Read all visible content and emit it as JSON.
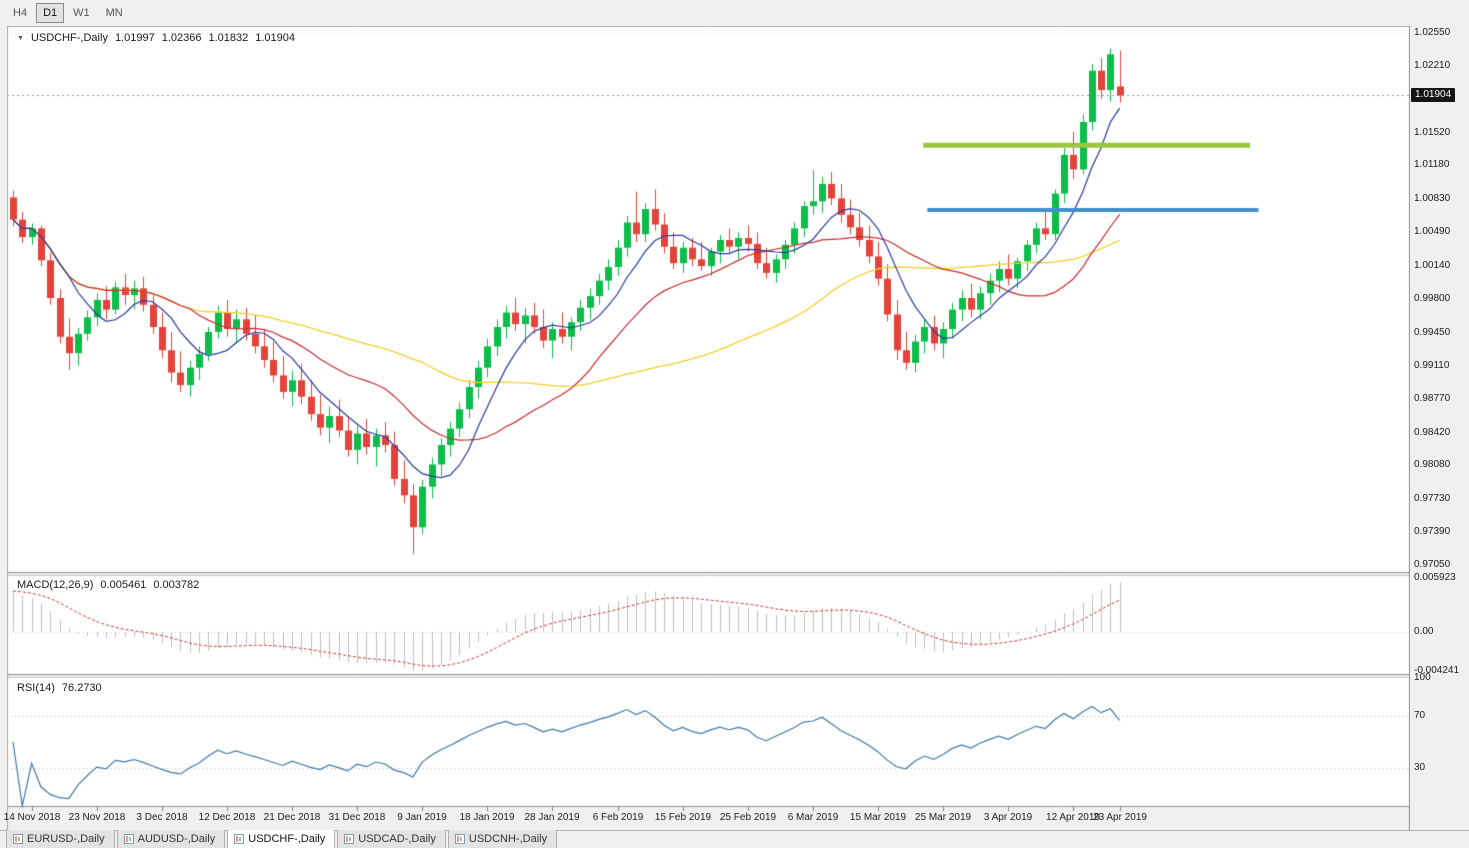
{
  "toolbar": {
    "timeframes": [
      "H4",
      "D1",
      "W1",
      "MN"
    ],
    "active": "D1"
  },
  "main_chart": {
    "title_symbol": "USDCHF-,Daily",
    "ohlc": {
      "open": "1.01997",
      "high": "1.02366",
      "low": "1.01832",
      "close": "1.01904"
    },
    "current_price": "1.01904",
    "current_price_value": 1.01904,
    "grid_top_price": 1.0255,
    "price_axis_labels": [
      "1.02550",
      "1.02210",
      "1.01520",
      "1.01180",
      "1.00830",
      "1.00490",
      "1.00140",
      "0.99800",
      "0.99450",
      "0.99110",
      "0.98770",
      "0.98420",
      "0.98080",
      "0.97730",
      "0.97390",
      "0.97050"
    ],
    "annotations": {
      "resistance_line": {
        "price": 1.0139,
        "x1": 0.653,
        "x2": 0.886,
        "color": "#9bc53d",
        "thickness": 5
      },
      "support_line": {
        "price": 1.0072,
        "x1": 0.656,
        "x2": 0.892,
        "color": "#3f8fce",
        "thickness": 4
      }
    }
  },
  "macd_panel": {
    "label": "MACD(12,26,9)",
    "value_main": "0.005461",
    "value_signal": "0.003782",
    "axis_labels": [
      "0.005923",
      "0.00",
      "-0.004241"
    ]
  },
  "rsi_panel": {
    "label": "RSI(14)",
    "value": "76.2730",
    "axis_labels": [
      "100",
      "70",
      "30"
    ],
    "levels": [
      70,
      30
    ]
  },
  "date_axis": {
    "labels": [
      "14 Nov 2018",
      "23 Nov 2018",
      "3 Dec 2018",
      "12 Dec 2018",
      "21 Dec 2018",
      "31 Dec 2018",
      "9 Jan 2019",
      "18 Jan 2019",
      "28 Jan 2019",
      "6 Feb 2019",
      "15 Feb 2019",
      "25 Feb 2019",
      "6 Mar 2019",
      "15 Mar 2019",
      "25 Mar 2019",
      "3 Apr 2019",
      "12 Apr 2019",
      "23 Apr 2019"
    ]
  },
  "tabs": {
    "items": [
      "EURUSD-,Daily",
      "AUDUSD-,Daily",
      "USDCHF-,Daily",
      "USDCAD-,Daily",
      "USDCNH-,Daily"
    ],
    "active_index": 2
  },
  "colors": {
    "bull": "#0cbd49",
    "bear": "#e4433b",
    "ma_fast": "#2b3a9e",
    "ma_mid": "#c52f2f",
    "ma_slow": "#f2cf2a",
    "macd_hist": "#c0c0c0",
    "macd_signal": "#d23a3a",
    "rsi_line": "#4079a8",
    "badge_bg": "#151515",
    "resistance": "#9bc53d",
    "support": "#3f8fce"
  },
  "chart_data": {
    "type": "candlestick",
    "title": "USDCHF-,Daily",
    "symbol": "USDCHF",
    "timeframe": "Daily",
    "price_range": [
      0.9705,
      1.0255
    ],
    "x_labels": [
      "14 Nov 2018",
      "23 Nov 2018",
      "3 Dec 2018",
      "12 Dec 2018",
      "21 Dec 2018",
      "31 Dec 2018",
      "9 Jan 2019",
      "18 Jan 2019",
      "28 Jan 2019",
      "6 Feb 2019",
      "15 Feb 2019",
      "25 Feb 2019",
      "6 Mar 2019",
      "15 Mar 2019",
      "25 Mar 2019",
      "3 Apr 2019",
      "12 Apr 2019",
      "23 Apr 2019"
    ],
    "overlays": [
      {
        "name": "ma-fast-blue",
        "type": "sma",
        "period": 7
      },
      {
        "name": "ma-mid-red",
        "type": "sma",
        "period": 20
      },
      {
        "name": "ma-slow-yellow",
        "type": "sma",
        "period": 45
      }
    ],
    "macd": {
      "params": [
        12,
        26,
        9
      ],
      "current_main": 0.005461,
      "current_signal": 0.003782,
      "axis_range": [
        -0.004241,
        0.005923
      ]
    },
    "rsi": {
      "period": 14,
      "current": 76.273,
      "levels": [
        70,
        30
      ]
    },
    "candles": [
      [
        1.0085,
        1.0092,
        1.0055,
        1.0062
      ],
      [
        1.0062,
        1.007,
        1.0038,
        1.0044
      ],
      [
        1.0044,
        1.0058,
        1.0036,
        1.0053
      ],
      [
        1.0053,
        1.0056,
        1.0014,
        1.002
      ],
      [
        1.002,
        1.0028,
        0.9974,
        0.9981
      ],
      [
        0.9981,
        0.999,
        0.9934,
        0.9941
      ],
      [
        0.9941,
        0.996,
        0.9907,
        0.9924
      ],
      [
        0.9924,
        0.995,
        0.9911,
        0.9944
      ],
      [
        0.9944,
        0.9968,
        0.9937,
        0.9961
      ],
      [
        0.9961,
        0.9986,
        0.9952,
        0.9979
      ],
      [
        0.9979,
        0.9993,
        0.9959,
        0.9969
      ],
      [
        0.9969,
        0.9998,
        0.9964,
        0.9992
      ],
      [
        0.9992,
        1.0006,
        0.9974,
        0.9984
      ],
      [
        0.9984,
        0.9999,
        0.9969,
        0.9991
      ],
      [
        0.9991,
        1.0003,
        0.9967,
        0.9974
      ],
      [
        0.9974,
        0.9985,
        0.9944,
        0.9951
      ],
      [
        0.9951,
        0.9966,
        0.9919,
        0.9927
      ],
      [
        0.9927,
        0.9946,
        0.9894,
        0.9904
      ],
      [
        0.9904,
        0.9926,
        0.9884,
        0.9891
      ],
      [
        0.9891,
        0.9916,
        0.9879,
        0.9909
      ],
      [
        0.9909,
        0.9931,
        0.9896,
        0.9923
      ],
      [
        0.9923,
        0.9951,
        0.9916,
        0.9946
      ],
      [
        0.9946,
        0.9973,
        0.9939,
        0.9966
      ],
      [
        0.9966,
        0.9979,
        0.9941,
        0.9949
      ],
      [
        0.9949,
        0.9969,
        0.9934,
        0.9959
      ],
      [
        0.9959,
        0.9971,
        0.9937,
        0.9944
      ],
      [
        0.9944,
        0.9963,
        0.9924,
        0.9931
      ],
      [
        0.9931,
        0.9949,
        0.9909,
        0.9917
      ],
      [
        0.9917,
        0.9936,
        0.9894,
        0.9901
      ],
      [
        0.9901,
        0.9921,
        0.9877,
        0.9884
      ],
      [
        0.9884,
        0.9906,
        0.9869,
        0.9896
      ],
      [
        0.9896,
        0.9913,
        0.9871,
        0.9879
      ],
      [
        0.9879,
        0.9896,
        0.9854,
        0.9861
      ],
      [
        0.9861,
        0.9881,
        0.9839,
        0.9847
      ],
      [
        0.9847,
        0.9869,
        0.9831,
        0.9859
      ],
      [
        0.9859,
        0.9876,
        0.9837,
        0.9844
      ],
      [
        0.9844,
        0.9859,
        0.9817,
        0.9824
      ],
      [
        0.9824,
        0.9849,
        0.9809,
        0.9841
      ],
      [
        0.9841,
        0.9856,
        0.9819,
        0.9827
      ],
      [
        0.9827,
        0.9846,
        0.9807,
        0.9839
      ],
      [
        0.9839,
        0.9853,
        0.9821,
        0.9829
      ],
      [
        0.9829,
        0.9843,
        0.9787,
        0.9794
      ],
      [
        0.9794,
        0.9813,
        0.9769,
        0.9777
      ],
      [
        0.9777,
        0.9789,
        0.9716,
        0.9744
      ],
      [
        0.9744,
        0.9793,
        0.9737,
        0.9786
      ],
      [
        0.9786,
        0.9816,
        0.9774,
        0.9809
      ],
      [
        0.9809,
        0.9836,
        0.9797,
        0.9829
      ],
      [
        0.9829,
        0.9853,
        0.9817,
        0.9846
      ],
      [
        0.9846,
        0.9873,
        0.9837,
        0.9866
      ],
      [
        0.9866,
        0.9896,
        0.9857,
        0.9889
      ],
      [
        0.9889,
        0.9916,
        0.9877,
        0.9909
      ],
      [
        0.9909,
        0.9939,
        0.9899,
        0.9931
      ],
      [
        0.9931,
        0.9959,
        0.9921,
        0.9951
      ],
      [
        0.9951,
        0.9973,
        0.9939,
        0.9966
      ],
      [
        0.9966,
        0.9981,
        0.9947,
        0.9954
      ],
      [
        0.9954,
        0.9971,
        0.9934,
        0.9963
      ],
      [
        0.9963,
        0.9976,
        0.9944,
        0.9951
      ],
      [
        0.9951,
        0.9969,
        0.9929,
        0.9937
      ],
      [
        0.9937,
        0.9956,
        0.9919,
        0.9949
      ],
      [
        0.9949,
        0.9966,
        0.9934,
        0.9941
      ],
      [
        0.9941,
        0.9961,
        0.9927,
        0.9956
      ],
      [
        0.9956,
        0.9979,
        0.9947,
        0.9971
      ],
      [
        0.9971,
        0.9991,
        0.9959,
        0.9983
      ],
      [
        0.9983,
        1.0006,
        0.9974,
        0.9999
      ],
      [
        0.9999,
        1.0021,
        0.9989,
        1.0013
      ],
      [
        1.0013,
        1.0041,
        1.0004,
        1.0033
      ],
      [
        1.0033,
        1.0066,
        1.0024,
        1.0059
      ],
      [
        1.0059,
        1.0091,
        1.0039,
        1.0047
      ],
      [
        1.0047,
        1.0079,
        1.0039,
        1.0073
      ],
      [
        1.0073,
        1.0093,
        1.0051,
        1.0057
      ],
      [
        1.0057,
        1.0069,
        1.0027,
        1.0034
      ],
      [
        1.0034,
        1.0049,
        1.0011,
        1.0017
      ],
      [
        1.0017,
        1.0039,
        1.0007,
        1.0033
      ],
      [
        1.0033,
        1.0043,
        1.0014,
        1.0021
      ],
      [
        1.0021,
        1.0039,
        1.0009,
        1.0014
      ],
      [
        1.0014,
        1.0033,
        1.0004,
        1.0029
      ],
      [
        1.0029,
        1.0046,
        1.0017,
        1.0041
      ],
      [
        1.0041,
        1.0053,
        1.0027,
        1.0034
      ],
      [
        1.0034,
        1.0049,
        1.0021,
        1.0043
      ],
      [
        1.0043,
        1.0056,
        1.0029,
        1.0037
      ],
      [
        1.0037,
        1.0049,
        1.0011,
        1.0017
      ],
      [
        1.0017,
        1.0033,
        1.0001,
        1.0007
      ],
      [
        1.0007,
        1.0026,
        0.9997,
        1.0021
      ],
      [
        1.0021,
        1.0041,
        1.0011,
        1.0036
      ],
      [
        1.0036,
        1.0059,
        1.0027,
        1.0053
      ],
      [
        1.0053,
        1.0081,
        1.0044,
        1.0076
      ],
      [
        1.0076,
        1.0113,
        1.0067,
        1.0081
      ],
      [
        1.0081,
        1.0106,
        1.0069,
        1.0099
      ],
      [
        1.0099,
        1.0111,
        1.0077,
        1.0084
      ],
      [
        1.0084,
        1.0099,
        1.0059,
        1.0067
      ],
      [
        1.0067,
        1.0083,
        1.0047,
        1.0054
      ],
      [
        1.0054,
        1.0069,
        1.0034,
        1.0041
      ],
      [
        1.0041,
        1.0056,
        1.0017,
        1.0024
      ],
      [
        1.0024,
        1.0039,
        0.9994,
        1.0001
      ],
      [
        1.0001,
        1.0016,
        0.9957,
        0.9964
      ],
      [
        0.9964,
        0.9979,
        0.9917,
        0.9927
      ],
      [
        0.9927,
        0.9946,
        0.9907,
        0.9914
      ],
      [
        0.9914,
        0.9943,
        0.9904,
        0.9936
      ],
      [
        0.9936,
        0.9959,
        0.9924,
        0.9951
      ],
      [
        0.9951,
        0.9963,
        0.9927,
        0.9934
      ],
      [
        0.9934,
        0.9956,
        0.9919,
        0.9949
      ],
      [
        0.9949,
        0.9976,
        0.9939,
        0.9969
      ],
      [
        0.9969,
        0.9989,
        0.9957,
        0.9981
      ],
      [
        0.9981,
        0.9996,
        0.9961,
        0.9969
      ],
      [
        0.9969,
        0.9993,
        0.9959,
        0.9986
      ],
      [
        0.9986,
        1.0006,
        0.9974,
        0.9999
      ],
      [
        0.9999,
        1.0019,
        0.9987,
        1.0011
      ],
      [
        1.0011,
        1.0026,
        0.9994,
        1.0001
      ],
      [
        1.0001,
        1.0023,
        0.9991,
        1.0019
      ],
      [
        1.0019,
        1.0041,
        1.0009,
        1.0036
      ],
      [
        1.0036,
        1.0059,
        1.0027,
        1.0053
      ],
      [
        1.0053,
        1.0073,
        1.0041,
        1.0047
      ],
      [
        1.0047,
        1.0093,
        1.0041,
        1.0089
      ],
      [
        1.0089,
        1.0136,
        1.0079,
        1.0129
      ],
      [
        1.0129,
        1.0153,
        1.0104,
        1.0114
      ],
      [
        1.0114,
        1.0171,
        1.0109,
        1.0163
      ],
      [
        1.0163,
        1.0223,
        1.0154,
        1.0216
      ],
      [
        1.0216,
        1.0229,
        1.0187,
        1.0196
      ],
      [
        1.0196,
        1.0239,
        1.0184,
        1.0233
      ],
      [
        1.01997,
        1.02366,
        1.01832,
        1.01904
      ]
    ]
  }
}
